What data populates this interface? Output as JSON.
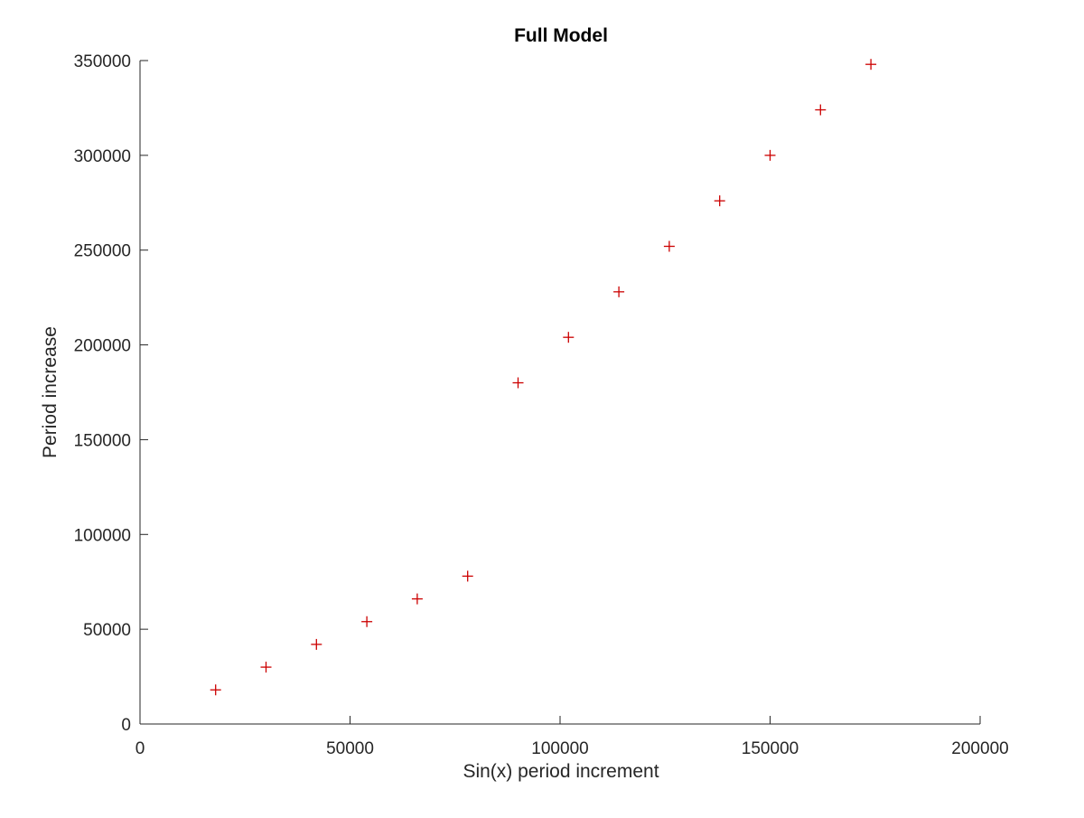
{
  "chart_data": {
    "type": "scatter",
    "title": "Full Model",
    "xlabel": "Sin(x) period increment",
    "ylabel": "Period increase",
    "xlim": [
      0,
      200000
    ],
    "ylim": [
      0,
      350000
    ],
    "x_ticks": [
      0,
      50000,
      100000,
      150000,
      200000
    ],
    "x_tick_labels": [
      "0",
      "50000",
      "100000",
      "150000",
      "200000"
    ],
    "y_ticks": [
      0,
      50000,
      100000,
      150000,
      200000,
      250000,
      300000,
      350000
    ],
    "y_tick_labels": [
      "0",
      "50000",
      "100000",
      "150000",
      "200000",
      "250000",
      "300000",
      "350000"
    ],
    "grid": false,
    "marker": "plus",
    "marker_color": "#cc0000",
    "series": [
      {
        "x": [
          18000,
          30000,
          42000,
          54000,
          66000,
          78000,
          90000,
          102000,
          114000,
          126000,
          138000,
          150000,
          162000,
          174000
        ],
        "y": [
          18000,
          30000,
          42000,
          54000,
          66000,
          78000,
          180000,
          204000,
          228000,
          252000,
          276000,
          300000,
          324000,
          348000
        ]
      }
    ]
  }
}
